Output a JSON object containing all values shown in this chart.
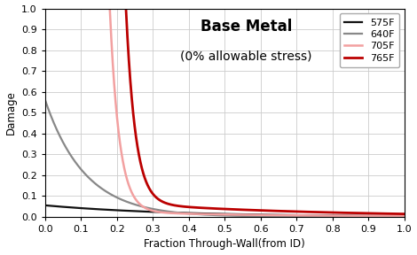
{
  "title": "Base Metal",
  "subtitle": "(0% allowable stress)",
  "xlabel": "Fraction Through-Wall(from ID)",
  "ylabel": "Damage",
  "xlim": [
    0.0,
    1.0
  ],
  "ylim": [
    0.0,
    1.0
  ],
  "curves": [
    {
      "label": "575F",
      "color": "#111111",
      "linewidth": 1.6,
      "type": "decay",
      "A": 0.055,
      "k": 2.8
    },
    {
      "label": "640F",
      "color": "#888888",
      "linewidth": 1.6,
      "type": "decay",
      "A": 0.56,
      "k": 9.0
    },
    {
      "label": "705F",
      "color": "#f2a0a0",
      "linewidth": 1.8,
      "type": "decay_capped",
      "A": 1.0,
      "k1": 38.0,
      "k2": 2.5,
      "x0": 0.18
    },
    {
      "label": "765F",
      "color": "#bb0000",
      "linewidth": 2.0,
      "type": "decay_capped",
      "A": 1.0,
      "k1": 38.0,
      "k2": 2.0,
      "x0": 0.225
    }
  ],
  "grid_color": "#cccccc",
  "background_color": "#ffffff",
  "title_fontsize": 12,
  "subtitle_fontsize": 10,
  "axis_label_fontsize": 8.5,
  "tick_fontsize": 8,
  "legend_fontsize": 8
}
